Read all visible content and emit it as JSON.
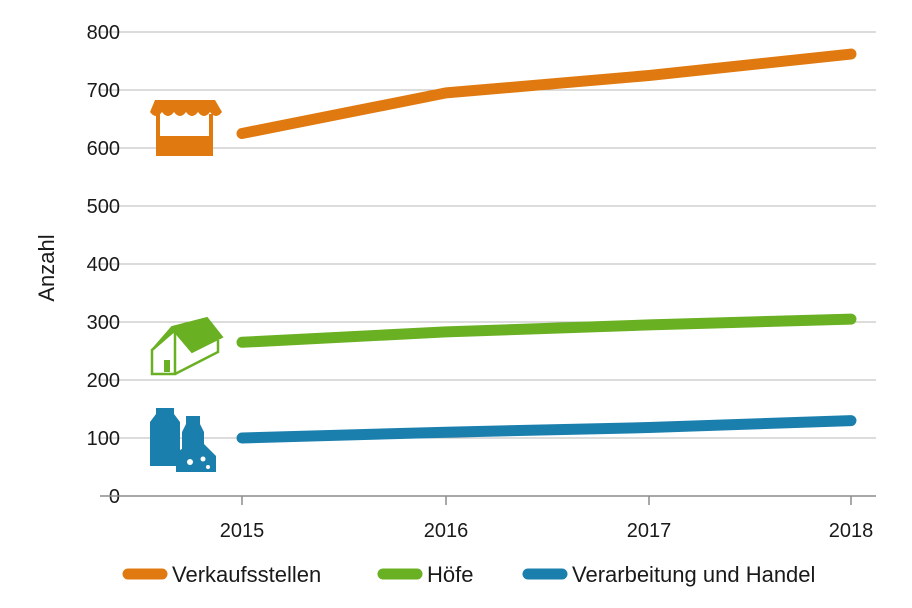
{
  "chart_data": {
    "type": "line",
    "title": "",
    "xlabel": "",
    "ylabel": "Anzahl",
    "x": [
      "2015",
      "2016",
      "2017",
      "2018"
    ],
    "ylim": [
      0,
      800
    ],
    "yticks": [
      "0",
      "100",
      "200",
      "300",
      "400",
      "500",
      "600",
      "700",
      "800"
    ],
    "grid": "horizontal",
    "legend_position": "bottom",
    "series": [
      {
        "name": "Verkaufsstellen",
        "values": [
          625,
          695,
          725,
          762
        ],
        "color": "#e07a10",
        "icon": "market-stall-icon"
      },
      {
        "name": "Höfe",
        "values": [
          265,
          283,
          295,
          305
        ],
        "color": "#6ab023",
        "icon": "farmhouse-icon"
      },
      {
        "name": "Verarbeitung und Handel",
        "values": [
          100,
          110,
          118,
          130
        ],
        "color": "#1b7fae",
        "icon": "dairy-products-icon"
      }
    ]
  }
}
